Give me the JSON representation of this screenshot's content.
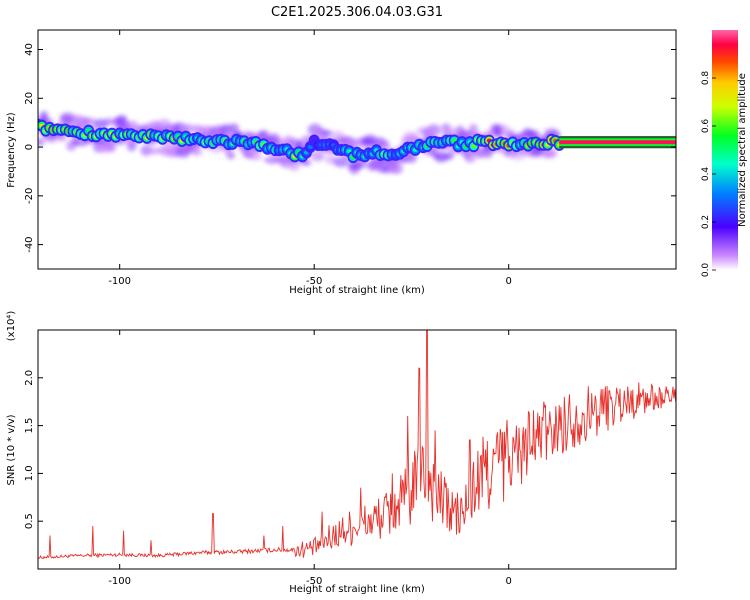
{
  "figure": {
    "title": "C2E1.2025.306.04.03.G31"
  },
  "chart_data": [
    {
      "type": "heatmap",
      "xlabel": "Height of straight line (km)",
      "ylabel": "Frequency (Hz)",
      "xlim": [
        -121,
        43
      ],
      "ylim": [
        -50,
        48
      ],
      "xticks": [
        -100,
        -50,
        0
      ],
      "yticks": [
        -40,
        -20,
        0,
        20,
        40
      ],
      "colorbar": {
        "label": "Normalized spectral amplitude",
        "range": [
          0,
          1
        ],
        "ticks": [
          "0.0",
          "0.2",
          "0.4",
          "0.6",
          "0.8"
        ],
        "tick_values": [
          0.0,
          0.2,
          0.4,
          0.6,
          0.8
        ],
        "colormap": [
          "#ffffff",
          "#cc88ff",
          "#4b00ff",
          "#0080ff",
          "#00ffcc",
          "#00ff22",
          "#ccff00",
          "#ffcc00",
          "#ff4400",
          "#ff0044",
          "#ff66aa"
        ]
      },
      "ridge": {
        "x": [
          -121,
          -115,
          -110,
          -105,
          -100,
          -95,
          -90,
          -85,
          -80,
          -75,
          -70,
          -65,
          -60,
          -57,
          -55,
          -52,
          -50,
          -47,
          -45,
          -42,
          -40,
          -37,
          -35,
          -32,
          -30,
          -28,
          -26,
          -24,
          -22,
          -20,
          -17,
          -15,
          -12,
          -10,
          -8,
          -5,
          -3,
          0,
          3,
          5,
          7,
          10,
          13,
          20,
          30,
          43
        ],
        "y": [
          8,
          7,
          6,
          5.5,
          5,
          4,
          4,
          3.5,
          3,
          2.5,
          2,
          1,
          0,
          -2,
          -4,
          -2,
          2,
          1,
          0,
          -2,
          -3,
          -3,
          -2,
          -3,
          -4,
          -3,
          -1,
          0,
          1,
          1,
          2,
          2,
          1,
          1,
          2,
          2,
          2,
          1.5,
          1,
          0.5,
          1,
          2,
          2,
          2,
          2,
          2
        ],
        "amplitude": [
          0.7,
          0.8,
          0.65,
          0.75,
          0.6,
          0.8,
          0.6,
          0.7,
          0.55,
          0.65,
          0.5,
          0.6,
          0.55,
          0.45,
          0.7,
          0.4,
          0.3,
          0.45,
          0.35,
          0.5,
          0.55,
          0.45,
          0.4,
          0.6,
          0.5,
          0.45,
          0.5,
          0.55,
          0.45,
          0.6,
          0.5,
          0.6,
          0.55,
          0.6,
          0.8,
          0.9,
          0.85,
          0.95,
          0.6,
          0.7,
          0.85,
          0.9,
          0.95,
          0.95,
          0.95,
          0.95
        ]
      },
      "ridge_band_from_x": 13
    },
    {
      "type": "line",
      "xlabel": "Height of straight line (km)",
      "ylabel": "SNR (10 * v/v)",
      "scale_label": "(x10⁴)",
      "xlim": [
        -121,
        43
      ],
      "ylim": [
        0,
        2.5
      ],
      "xticks": [
        -100,
        -50,
        0
      ],
      "yticks": [
        0.5,
        1.0,
        1.5,
        2.0
      ],
      "ytick_labels": [
        "0.5",
        "1.0",
        "1.5",
        "2.0"
      ],
      "series": [
        {
          "color": "#e8302a",
          "envelope_x": [
            -121,
            -110,
            -100,
            -90,
            -80,
            -70,
            -60,
            -55,
            -50,
            -45,
            -40,
            -35,
            -30,
            -25,
            -22,
            -20,
            -18,
            -15,
            -12,
            -10,
            -8,
            -5,
            -3,
            0,
            3,
            5,
            8,
            10,
            13,
            15,
            20,
            25,
            30,
            35,
            40,
            43
          ],
          "envelope_y": [
            0.12,
            0.14,
            0.15,
            0.14,
            0.17,
            0.18,
            0.2,
            0.2,
            0.22,
            0.35,
            0.45,
            0.5,
            0.6,
            0.8,
            1.0,
            0.9,
            0.75,
            0.6,
            0.55,
            0.75,
            0.9,
            1.05,
            1.1,
            1.15,
            1.2,
            1.3,
            1.35,
            1.45,
            1.5,
            1.55,
            1.62,
            1.7,
            1.75,
            1.78,
            1.8,
            1.82
          ],
          "spike_x": [
            -118,
            -107,
            -99,
            -92,
            -76,
            -63,
            -58,
            -48,
            -38,
            -30,
            -26,
            -23,
            -21,
            -19,
            -16,
            -10,
            -6,
            2,
            5,
            8,
            9,
            11,
            23,
            30
          ],
          "spike_y": [
            0.35,
            0.45,
            0.4,
            0.3,
            0.58,
            0.35,
            0.45,
            0.6,
            0.85,
            1.0,
            1.6,
            2.1,
            2.5,
            1.45,
            0.9,
            1.35,
            1.25,
            1.5,
            1.65,
            1.6,
            1.75,
            1.45,
            1.6,
            1.75
          ]
        }
      ]
    }
  ]
}
